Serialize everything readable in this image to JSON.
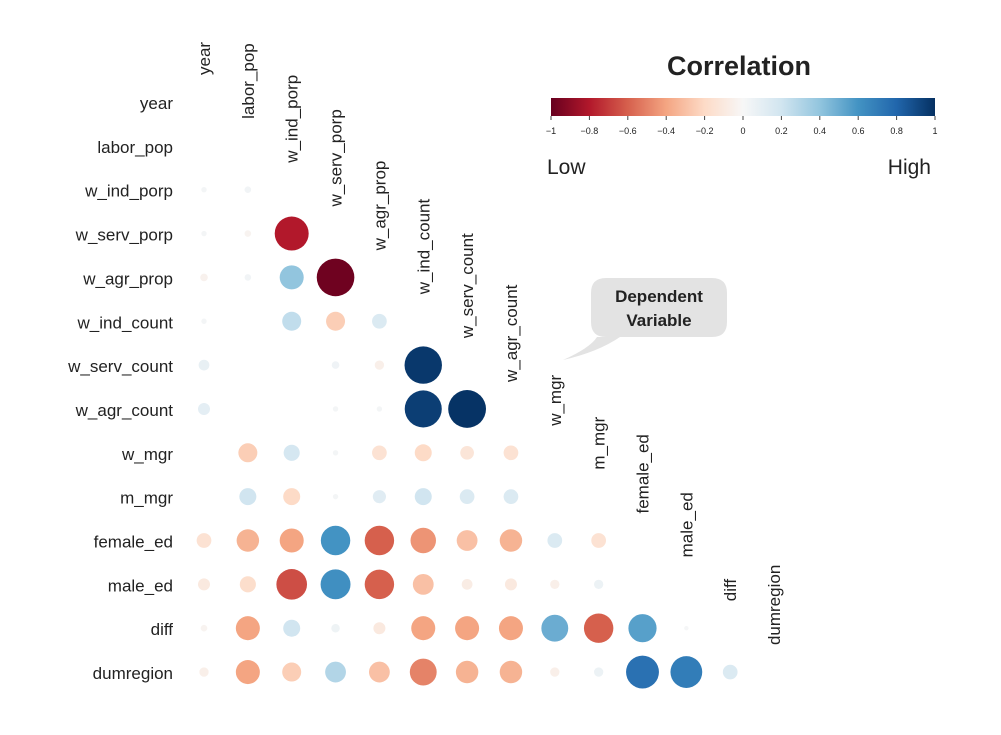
{
  "chart_data": {
    "type": "correlation-bubble-matrix",
    "layout": "lower-triangle",
    "variables": [
      "year",
      "labor_pop",
      "w_ind_porp",
      "w_serv_porp",
      "w_agr_prop",
      "w_ind_count",
      "w_serv_count",
      "w_agr_count",
      "w_mgr",
      "m_mgr",
      "female_ed",
      "male_ed",
      "diff",
      "dumregion"
    ],
    "matrix": [
      [],
      [
        null
      ],
      [
        0.02,
        0.03
      ],
      [
        0.02,
        -0.03,
        -0.8
      ],
      [
        -0.04,
        0.03,
        0.4,
        -0.98
      ],
      [
        0.02,
        null,
        0.25,
        -0.25,
        0.15
      ],
      [
        0.08,
        null,
        null,
        0.04,
        -0.06,
        0.97
      ],
      [
        0.1,
        null,
        null,
        0.02,
        0.02,
        0.95,
        0.99
      ],
      [
        null,
        -0.25,
        0.18,
        0.02,
        -0.15,
        -0.2,
        -0.13,
        -0.15
      ],
      [
        null,
        0.2,
        -0.2,
        0.02,
        0.12,
        0.2,
        0.15,
        0.15
      ],
      [
        -0.15,
        -0.35,
        -0.4,
        0.6,
        -0.6,
        -0.45,
        -0.3,
        -0.35,
        0.15,
        -0.15
      ],
      [
        -0.1,
        -0.18,
        -0.65,
        0.62,
        -0.6,
        -0.3,
        -0.08,
        -0.1,
        -0.06,
        0.06
      ],
      [
        -0.03,
        -0.4,
        0.2,
        0.05,
        -0.1,
        -0.4,
        -0.4,
        -0.4,
        0.5,
        -0.6,
        0.55,
        0.01
      ],
      [
        -0.06,
        -0.4,
        -0.25,
        0.3,
        -0.3,
        -0.5,
        -0.35,
        -0.35,
        -0.06,
        0.06,
        0.75,
        0.7,
        0.15
      ]
    ],
    "legend": {
      "title": "Correlation",
      "ticks": [
        "−1",
        "−0.8",
        "−0.6",
        "−0.4",
        "−0.2",
        "0",
        "0.2",
        "0.4",
        "0.6",
        "0.8",
        "1"
      ],
      "low_label": "Low",
      "high_label": "High"
    },
    "annotation": {
      "text_line1": "Dependent",
      "text_line2": "Variable",
      "target": "w_mgr"
    }
  }
}
